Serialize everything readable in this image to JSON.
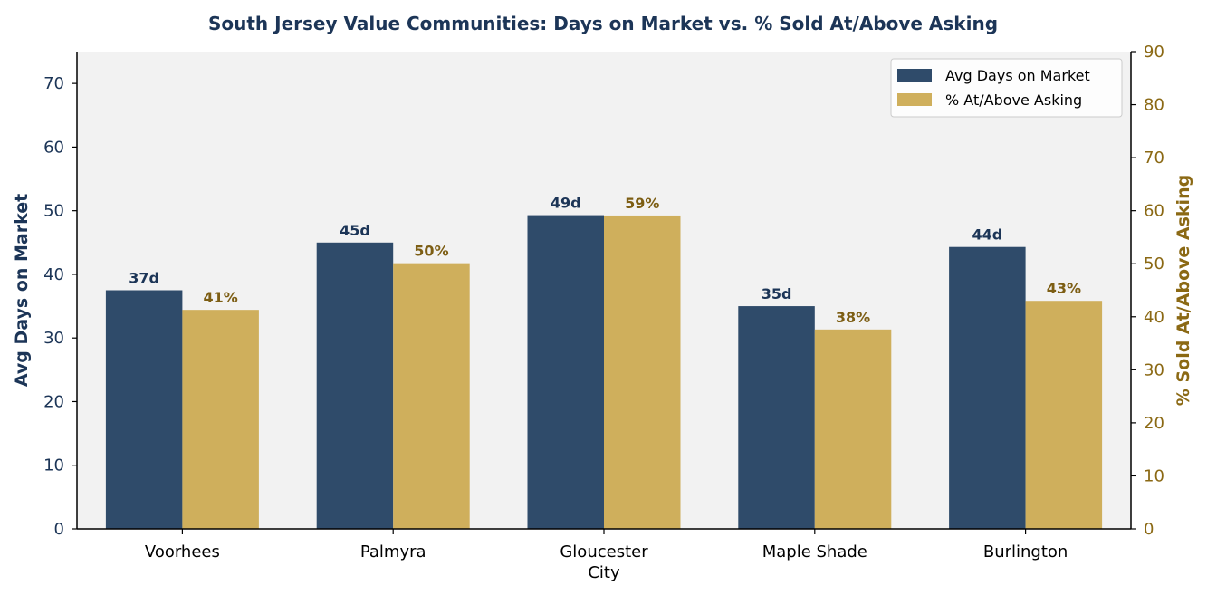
{
  "chart_data": {
    "type": "bar",
    "title": "South Jersey Value Communities: Days on Market vs. % Sold At/Above Asking",
    "categories": [
      "Voorhees",
      "Palmyra",
      "Gloucester City",
      "Maple Shade",
      "Burlington"
    ],
    "category_lines": [
      [
        "Voorhees"
      ],
      [
        "Palmyra"
      ],
      [
        "Gloucester",
        "City"
      ],
      [
        "Maple Shade"
      ],
      [
        "Burlington"
      ]
    ],
    "series": [
      {
        "name": "Avg Days on Market",
        "axis": "left",
        "values": [
          37.5,
          45,
          49.3,
          35,
          44.3
        ],
        "labels": [
          "37d",
          "45d",
          "49d",
          "35d",
          "44d"
        ],
        "color": "#2f4b6a",
        "label_color": "#1c3557"
      },
      {
        "name": "% At/Above Asking",
        "axis": "right",
        "values": [
          41.3,
          50.1,
          59.1,
          37.6,
          43
        ],
        "labels": [
          "41%",
          "50%",
          "59%",
          "38%",
          "43%"
        ],
        "color": "#cfaf5c",
        "label_color": "#7d5e14"
      }
    ],
    "ylabel_left": "Avg Days on Market",
    "ylabel_right": "% Sold At/Above Asking",
    "ylim_left": [
      0,
      75
    ],
    "yticks_left": [
      0,
      10,
      20,
      30,
      40,
      50,
      60,
      70
    ],
    "ylim_right": [
      0,
      90
    ],
    "yticks_right": [
      0,
      10,
      20,
      30,
      40,
      50,
      60,
      70,
      80,
      90
    ],
    "legend": "top-right",
    "grid": false,
    "colors": {
      "title": "#1c3557",
      "left_axis": "#1c3557",
      "right_axis": "#8b6914",
      "plot_bg": "#f2f2f2"
    }
  }
}
